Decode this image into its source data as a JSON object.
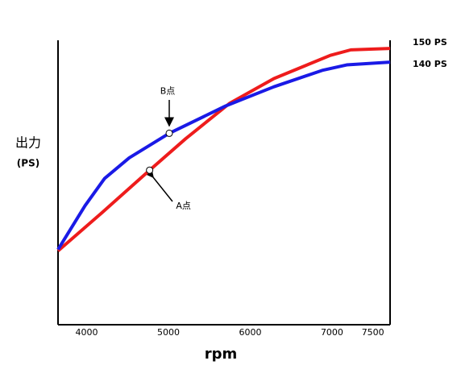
{
  "chart_data": {
    "type": "line",
    "y_label": "出力",
    "y_unit": "(PS)",
    "x_label": "rpm",
    "xlim": [
      3650,
      7710
    ],
    "ylim": [
      -52,
      156
    ],
    "xticks": [
      4000,
      5000,
      6000,
      7000,
      7500
    ],
    "series": [
      {
        "color": "#ee1c1c",
        "end_label": "150 PS",
        "x": [
          3650,
          4170,
          4770,
          5210,
          5750,
          6290,
          6980,
          7230,
          7710
        ],
        "values": [
          2,
          29,
          61,
          84,
          110,
          128,
          145,
          149,
          150
        ]
      },
      {
        "color": "#1a1ae6",
        "end_label": "140 PS",
        "x": [
          3650,
          3980,
          4220,
          4520,
          5010,
          5700,
          6290,
          6880,
          7180,
          7710
        ],
        "values": [
          3,
          35,
          55,
          70,
          88,
          108,
          122,
          134,
          138,
          140
        ]
      }
    ],
    "annotations": [
      {
        "text": "A点",
        "series": 0,
        "index": 2
      },
      {
        "text": "B点",
        "series": 1,
        "index": 4
      }
    ]
  }
}
